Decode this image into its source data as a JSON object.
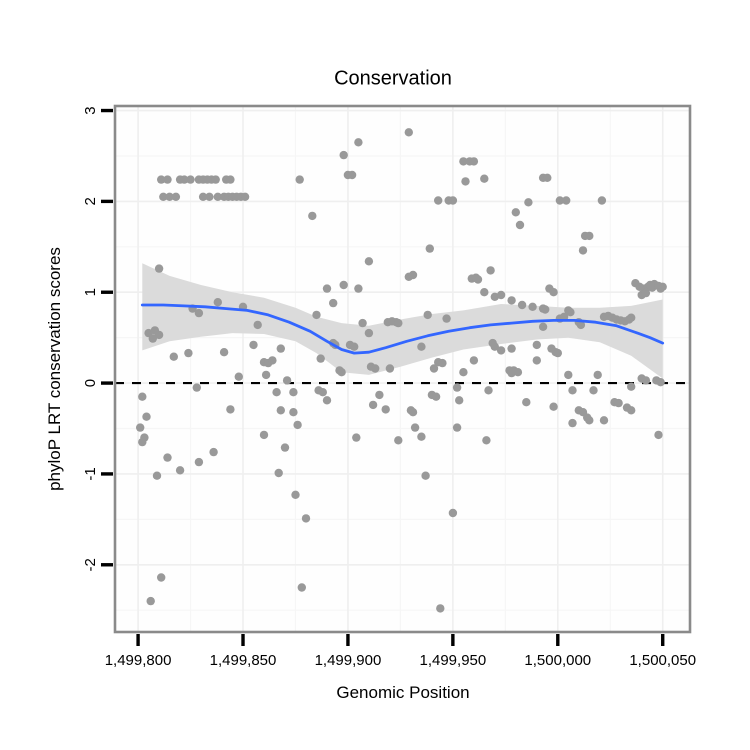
{
  "chart": {
    "title": "Conservation",
    "x_axis": {
      "label": "Genomic Position",
      "tick_labels": [
        "1,499,800",
        "1,499,850",
        "1,499,900",
        "1,499,950",
        "1,500,000",
        "1,500,050"
      ],
      "tick_values": [
        1499800,
        1499850,
        1499900,
        1499950,
        1500000,
        1500050
      ]
    },
    "y_axis": {
      "label": "phyloP LRT conservation scores",
      "tick_labels": [
        "3",
        "2",
        "1",
        "0",
        "-1",
        "-2"
      ],
      "tick_values": [
        3,
        2,
        1,
        0,
        -1,
        -2
      ]
    },
    "colors": {
      "background": "#FFFFFF",
      "panel_background": "#FEFEFE",
      "grid_major": "#EFEFEF",
      "grid_minor": "#F6F6F6",
      "panel_border": "#8A8A8A",
      "point": "#999999",
      "smooth_line": "#3366FF",
      "ci_band": "#DBDBDB",
      "zero_line": "#000000",
      "text": "#000000"
    }
  },
  "chart_data": {
    "type": "scatter",
    "title": "Conservation",
    "xlabel": "Genomic Position",
    "ylabel": "phyloP LRT conservation scores",
    "xlim": [
      1499789,
      1500063
    ],
    "ylim": [
      -2.74,
      3.05
    ],
    "grid": "major+minor",
    "legend": "none",
    "zero_reference_line": {
      "y": 0,
      "style": "dashed"
    },
    "smoother": "loess with confidence band",
    "smooth_line": [
      [
        1499802,
        0.86
      ],
      [
        1499812,
        0.86
      ],
      [
        1499822,
        0.85
      ],
      [
        1499832,
        0.84
      ],
      [
        1499842,
        0.82
      ],
      [
        1499852,
        0.8
      ],
      [
        1499862,
        0.75
      ],
      [
        1499872,
        0.67
      ],
      [
        1499882,
        0.57
      ],
      [
        1499890,
        0.46
      ],
      [
        1499897,
        0.37
      ],
      [
        1499903,
        0.33
      ],
      [
        1499910,
        0.34
      ],
      [
        1499918,
        0.39
      ],
      [
        1499928,
        0.46
      ],
      [
        1499938,
        0.52
      ],
      [
        1499948,
        0.57
      ],
      [
        1499958,
        0.61
      ],
      [
        1499968,
        0.64
      ],
      [
        1499978,
        0.66
      ],
      [
        1499988,
        0.68
      ],
      [
        1499998,
        0.69
      ],
      [
        1500008,
        0.69
      ],
      [
        1500018,
        0.67
      ],
      [
        1500028,
        0.63
      ],
      [
        1500038,
        0.55
      ],
      [
        1500044,
        0.5
      ],
      [
        1500050,
        0.44
      ]
    ],
    "ci_upper": [
      [
        1499802,
        1.32
      ],
      [
        1499815,
        1.18
      ],
      [
        1499830,
        1.08
      ],
      [
        1499845,
        1.0
      ],
      [
        1499860,
        0.94
      ],
      [
        1499875,
        0.83
      ],
      [
        1499885,
        0.73
      ],
      [
        1499897,
        0.66
      ],
      [
        1499910,
        0.63
      ],
      [
        1499925,
        0.7
      ],
      [
        1499940,
        0.76
      ],
      [
        1499955,
        0.8
      ],
      [
        1499973,
        0.87
      ],
      [
        1499990,
        0.85
      ],
      [
        1500005,
        0.83
      ],
      [
        1500020,
        0.83
      ],
      [
        1500035,
        0.85
      ],
      [
        1500050,
        0.92
      ]
    ],
    "ci_lower": [
      [
        1499802,
        0.36
      ],
      [
        1499815,
        0.46
      ],
      [
        1499830,
        0.51
      ],
      [
        1499845,
        0.55
      ],
      [
        1499860,
        0.54
      ],
      [
        1499875,
        0.46
      ],
      [
        1499885,
        0.33
      ],
      [
        1499897,
        0.12
      ],
      [
        1499910,
        0.09
      ],
      [
        1499925,
        0.18
      ],
      [
        1499940,
        0.28
      ],
      [
        1499955,
        0.37
      ],
      [
        1499973,
        0.43
      ],
      [
        1499990,
        0.48
      ],
      [
        1500005,
        0.5
      ],
      [
        1500020,
        0.45
      ],
      [
        1500035,
        0.3
      ],
      [
        1500050,
        0.05
      ]
    ],
    "points": [
      [
        1499811,
        2.24
      ],
      [
        1499814,
        2.24
      ],
      [
        1499820,
        2.24
      ],
      [
        1499822,
        2.24
      ],
      [
        1499825,
        2.24
      ],
      [
        1499829,
        2.24
      ],
      [
        1499831,
        2.24
      ],
      [
        1499833,
        2.24
      ],
      [
        1499835,
        2.24
      ],
      [
        1499837,
        2.24
      ],
      [
        1499842,
        2.24
      ],
      [
        1499844,
        2.24
      ],
      [
        1499877,
        2.24
      ],
      [
        1499812,
        2.05
      ],
      [
        1499815,
        2.05
      ],
      [
        1499818,
        2.05
      ],
      [
        1499831,
        2.05
      ],
      [
        1499834,
        2.05
      ],
      [
        1499838,
        2.05
      ],
      [
        1499841,
        2.05
      ],
      [
        1499843,
        2.05
      ],
      [
        1499845,
        2.05
      ],
      [
        1499847,
        2.05
      ],
      [
        1499849,
        2.05
      ],
      [
        1499851,
        2.05
      ],
      [
        1499883,
        1.84
      ],
      [
        1499898,
        2.51
      ],
      [
        1499900,
        2.29
      ],
      [
        1499902,
        2.29
      ],
      [
        1499905,
        2.65
      ],
      [
        1499910,
        1.34
      ],
      [
        1499929,
        2.76
      ],
      [
        1499939,
        1.48
      ],
      [
        1499943,
        2.01
      ],
      [
        1499948,
        2.01
      ],
      [
        1499950,
        2.01
      ],
      [
        1499955,
        2.44
      ],
      [
        1499956,
        2.22
      ],
      [
        1499958,
        2.44
      ],
      [
        1499960,
        2.44
      ],
      [
        1499965,
        2.25
      ],
      [
        1499968,
        1.24
      ],
      [
        1499980,
        1.88
      ],
      [
        1499982,
        1.74
      ],
      [
        1499986,
        1.99
      ],
      [
        1499993,
        2.26
      ],
      [
        1499995,
        2.26
      ],
      [
        1500001,
        2.01
      ],
      [
        1500004,
        2.01
      ],
      [
        1500012,
        1.46
      ],
      [
        1500013,
        1.62
      ],
      [
        1500015,
        1.62
      ],
      [
        1500021,
        2.01
      ],
      [
        1499805,
        0.55
      ],
      [
        1499807,
        0.49
      ],
      [
        1499808,
        0.58
      ],
      [
        1499810,
        0.53
      ],
      [
        1499810,
        1.26
      ],
      [
        1499817,
        0.29
      ],
      [
        1499824,
        0.33
      ],
      [
        1499826,
        0.82
      ],
      [
        1499829,
        0.77
      ],
      [
        1499838,
        0.89
      ],
      [
        1499841,
        0.34
      ],
      [
        1499850,
        0.84
      ],
      [
        1499855,
        0.42
      ],
      [
        1499857,
        0.64
      ],
      [
        1499860,
        0.23
      ],
      [
        1499862,
        0.22
      ],
      [
        1499864,
        0.25
      ],
      [
        1499868,
        0.38
      ],
      [
        1499801,
        -0.49
      ],
      [
        1499802,
        -0.15
      ],
      [
        1499803,
        -0.6
      ],
      [
        1499804,
        -0.37
      ],
      [
        1499828,
        -0.05
      ],
      [
        1499844,
        -0.29
      ],
      [
        1499848,
        0.07
      ],
      [
        1499860,
        -0.57
      ],
      [
        1499861,
        0.09
      ],
      [
        1499866,
        -0.1
      ],
      [
        1499868,
        -0.3
      ],
      [
        1499871,
        0.03
      ],
      [
        1499874,
        -0.1
      ],
      [
        1499874,
        -0.32
      ],
      [
        1499876,
        -0.46
      ],
      [
        1499802,
        -0.65
      ],
      [
        1499806,
        -2.4
      ],
      [
        1499809,
        -1.02
      ],
      [
        1499811,
        -2.14
      ],
      [
        1499814,
        -0.82
      ],
      [
        1499820,
        -0.96
      ],
      [
        1499829,
        -0.87
      ],
      [
        1499836,
        -0.76
      ],
      [
        1499867,
        -0.99
      ],
      [
        1499870,
        -0.71
      ],
      [
        1499875,
        -1.23
      ],
      [
        1499878,
        -2.25
      ],
      [
        1499880,
        -1.49
      ],
      [
        1499885,
        0.75
      ],
      [
        1499887,
        0.27
      ],
      [
        1499890,
        1.04
      ],
      [
        1499893,
        0.88
      ],
      [
        1499893,
        0.44
      ],
      [
        1499894,
        0.42
      ],
      [
        1499896,
        0.14
      ],
      [
        1499897,
        0.12
      ],
      [
        1499898,
        1.08
      ],
      [
        1499901,
        0.42
      ],
      [
        1499903,
        0.4
      ],
      [
        1499905,
        1.04
      ],
      [
        1499907,
        0.66
      ],
      [
        1499910,
        0.55
      ],
      [
        1499911,
        0.18
      ],
      [
        1499913,
        0.16
      ],
      [
        1499919,
        0.67
      ],
      [
        1499921,
        0.68
      ],
      [
        1499923,
        0.67
      ],
      [
        1499924,
        0.66
      ],
      [
        1499920,
        0.16
      ],
      [
        1499929,
        1.17
      ],
      [
        1499931,
        1.19
      ],
      [
        1499935,
        0.4
      ],
      [
        1499938,
        0.75
      ],
      [
        1499941,
        0.16
      ],
      [
        1499943,
        0.23
      ],
      [
        1499945,
        0.22
      ],
      [
        1499947,
        0.71
      ],
      [
        1499952,
        -0.05
      ],
      [
        1499955,
        0.12
      ],
      [
        1499959,
        1.15
      ],
      [
        1499960,
        0.25
      ],
      [
        1499961,
        1.16
      ],
      [
        1499962,
        1.14
      ],
      [
        1499886,
        -0.08
      ],
      [
        1499888,
        -0.1
      ],
      [
        1499890,
        -0.19
      ],
      [
        1499904,
        -0.6
      ],
      [
        1499912,
        -0.24
      ],
      [
        1499915,
        -0.13
      ],
      [
        1499918,
        -0.29
      ],
      [
        1499924,
        -0.63
      ],
      [
        1499930,
        -0.3
      ],
      [
        1499931,
        -0.32
      ],
      [
        1499932,
        -0.49
      ],
      [
        1499935,
        -0.59
      ],
      [
        1499937,
        -1.02
      ],
      [
        1499940,
        -0.13
      ],
      [
        1499942,
        -0.15
      ],
      [
        1499944,
        -2.48
      ],
      [
        1499950,
        -1.43
      ],
      [
        1499952,
        -0.49
      ],
      [
        1499953,
        -0.19
      ],
      [
        1499966,
        -0.63
      ],
      [
        1499967,
        -0.08
      ],
      [
        1499965,
        1.0
      ],
      [
        1499969,
        0.44
      ],
      [
        1499970,
        0.95
      ],
      [
        1499970,
        0.4
      ],
      [
        1499973,
        0.97
      ],
      [
        1499973,
        0.36
      ],
      [
        1499977,
        0.14
      ],
      [
        1499978,
        0.91
      ],
      [
        1499978,
        0.38
      ],
      [
        1499978,
        0.11
      ],
      [
        1499979,
        0.14
      ],
      [
        1499981,
        0.12
      ],
      [
        1499983,
        0.86
      ],
      [
        1499985,
        -0.21
      ],
      [
        1499988,
        0.84
      ],
      [
        1499990,
        0.42
      ],
      [
        1499990,
        0.25
      ],
      [
        1499993,
        0.82
      ],
      [
        1499993,
        0.62
      ],
      [
        1499994,
        0.81
      ],
      [
        1499996,
        1.04
      ],
      [
        1499997,
        0.38
      ],
      [
        1499998,
        1.0
      ],
      [
        1499998,
        -0.26
      ],
      [
        1499999,
        0.34
      ],
      [
        1500000,
        0.33
      ],
      [
        1500001,
        0.71
      ],
      [
        1500003,
        0.73
      ],
      [
        1500005,
        0.8
      ],
      [
        1500005,
        0.09
      ],
      [
        1500006,
        0.78
      ],
      [
        1500007,
        -0.08
      ],
      [
        1500007,
        -0.44
      ],
      [
        1500010,
        0.67
      ],
      [
        1500011,
        0.64
      ],
      [
        1500010,
        -0.3
      ],
      [
        1500012,
        -0.32
      ],
      [
        1500014,
        -0.38
      ],
      [
        1500015,
        -0.41
      ],
      [
        1500017,
        -0.08
      ],
      [
        1500019,
        0.09
      ],
      [
        1500022,
        -0.41
      ],
      [
        1500022,
        0.73
      ],
      [
        1500024,
        0.74
      ],
      [
        1500026,
        0.72
      ],
      [
        1500028,
        0.7
      ],
      [
        1500030,
        0.69
      ],
      [
        1500032,
        0.68
      ],
      [
        1500034,
        0.7
      ],
      [
        1500035,
        0.72
      ],
      [
        1500035,
        -0.04
      ],
      [
        1500027,
        -0.21
      ],
      [
        1500029,
        -0.22
      ],
      [
        1500033,
        -0.27
      ],
      [
        1500035,
        -0.3
      ],
      [
        1500037,
        1.1
      ],
      [
        1500039,
        1.06
      ],
      [
        1500040,
        0.97
      ],
      [
        1500040,
        0.05
      ],
      [
        1500041,
        1.04
      ],
      [
        1500042,
        0.99
      ],
      [
        1500042,
        0.03
      ],
      [
        1500043,
        1.06
      ],
      [
        1500044,
        1.08
      ],
      [
        1500045,
        1.05
      ],
      [
        1500046,
        1.09
      ],
      [
        1500047,
        0.03
      ],
      [
        1500048,
        1.07
      ],
      [
        1500048,
        -0.57
      ],
      [
        1500049,
        1.04
      ],
      [
        1500049,
        0.01
      ],
      [
        1500050,
        1.06
      ]
    ]
  }
}
